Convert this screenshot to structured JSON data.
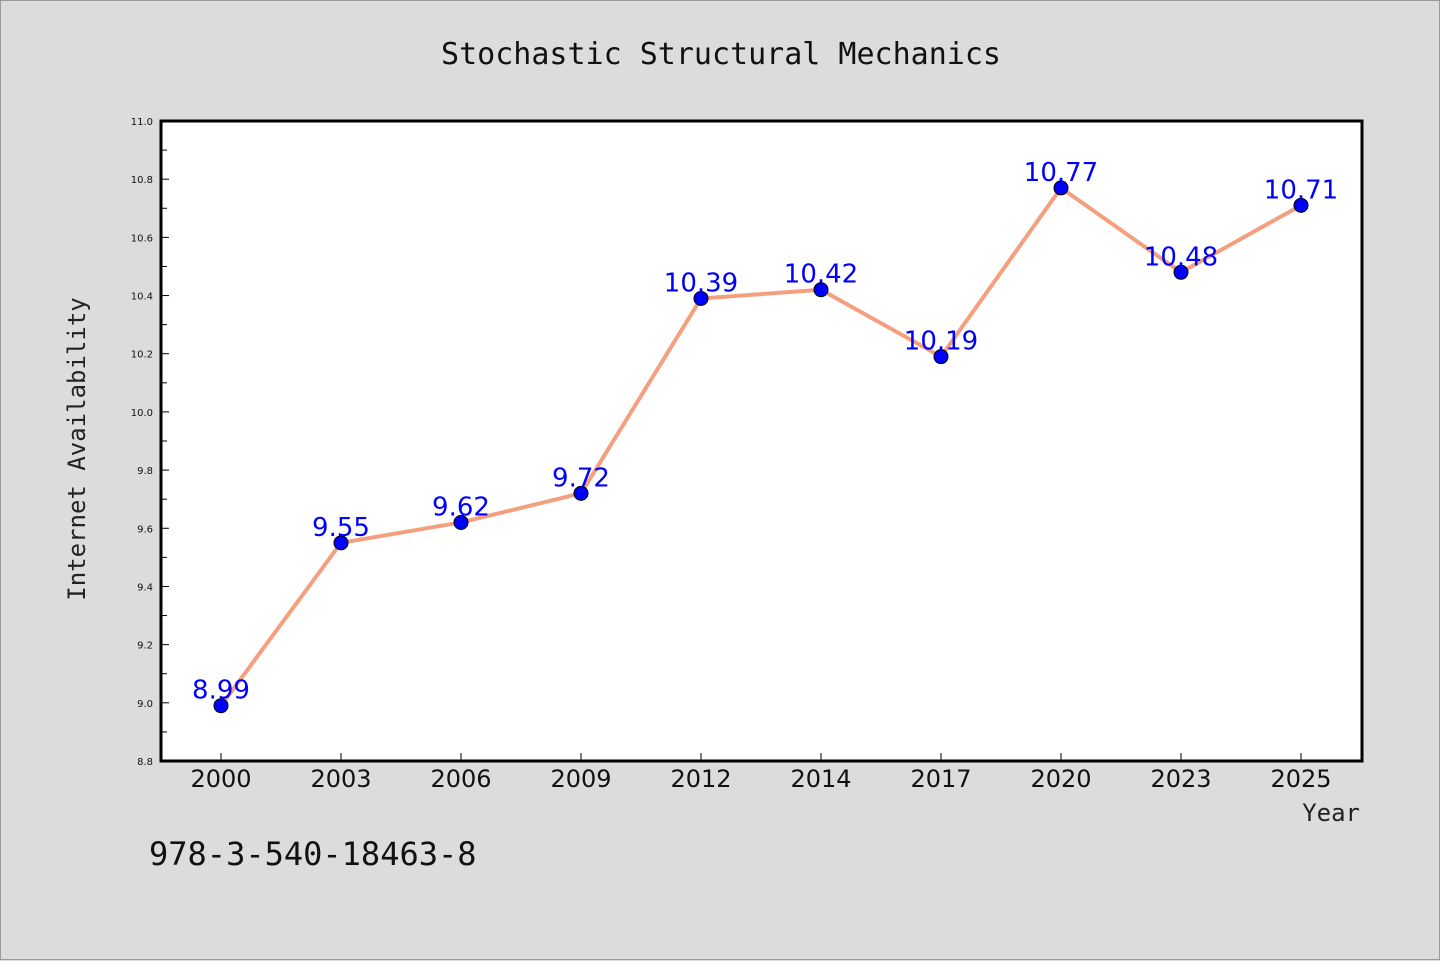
{
  "chart_data": {
    "type": "line",
    "title": "Stochastic Structural Mechanics",
    "xlabel": "Year",
    "ylabel": "Internet Availability",
    "categories": [
      "2000",
      "2003",
      "2006",
      "2009",
      "2012",
      "2014",
      "2017",
      "2020",
      "2023",
      "2025"
    ],
    "series": [
      {
        "values": [
          8.99,
          9.55,
          9.62,
          9.72,
          10.39,
          10.42,
          10.19,
          10.77,
          10.48,
          10.71
        ],
        "data_labels": [
          "8.99",
          "9.55",
          "9.62",
          "9.72",
          "10.39",
          "10.42",
          "10.19",
          "10.77",
          "10.48",
          "10.71"
        ],
        "line_color": "#f4a07e",
        "marker_color": "#0000ff"
      }
    ],
    "ylim": [
      8.8,
      11.0
    ],
    "y_major_ticks": [
      "8.8",
      "9.0",
      "9.2",
      "9.4",
      "9.6",
      "9.8",
      "10.0",
      "10.2",
      "10.4",
      "10.6",
      "10.8",
      "11.0"
    ],
    "grid": false,
    "legend": "none"
  },
  "caption": "978-3-540-18463-8",
  "colors": {
    "background": "#dcdcdc",
    "plot_background": "#ffffff",
    "label_color": "#0000ff"
  }
}
